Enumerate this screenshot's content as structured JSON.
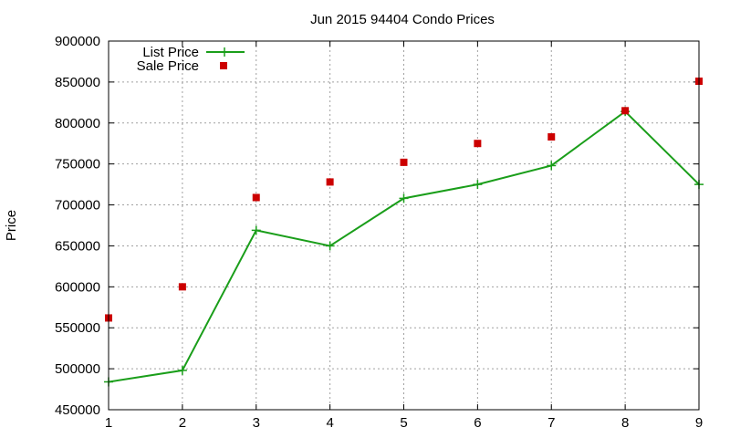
{
  "chart_data": {
    "type": "line",
    "title": "Jun 2015 94404 Condo Prices",
    "xlabel": "",
    "ylabel": "Price",
    "xlim": [
      1,
      9
    ],
    "ylim": [
      450000,
      900000
    ],
    "x_ticks": [
      1,
      2,
      3,
      4,
      5,
      6,
      7,
      8,
      9
    ],
    "y_ticks": [
      450000,
      500000,
      550000,
      600000,
      650000,
      700000,
      750000,
      800000,
      850000,
      900000
    ],
    "grid": true,
    "legend_position": "top-left",
    "series": [
      {
        "name": "List Price",
        "style": "line-plus",
        "color": "#1a9e1a",
        "x": [
          1,
          2,
          3,
          4,
          5,
          6,
          7,
          8,
          9
        ],
        "values": [
          484000,
          498000,
          669000,
          650000,
          708000,
          725000,
          748000,
          814000,
          725000
        ]
      },
      {
        "name": "Sale Price",
        "style": "square",
        "color": "#cc0000",
        "x": [
          1,
          2,
          3,
          4,
          5,
          6,
          7,
          8,
          9
        ],
        "values": [
          562000,
          600000,
          709000,
          728000,
          752000,
          775000,
          783000,
          815000,
          851000
        ]
      }
    ]
  }
}
